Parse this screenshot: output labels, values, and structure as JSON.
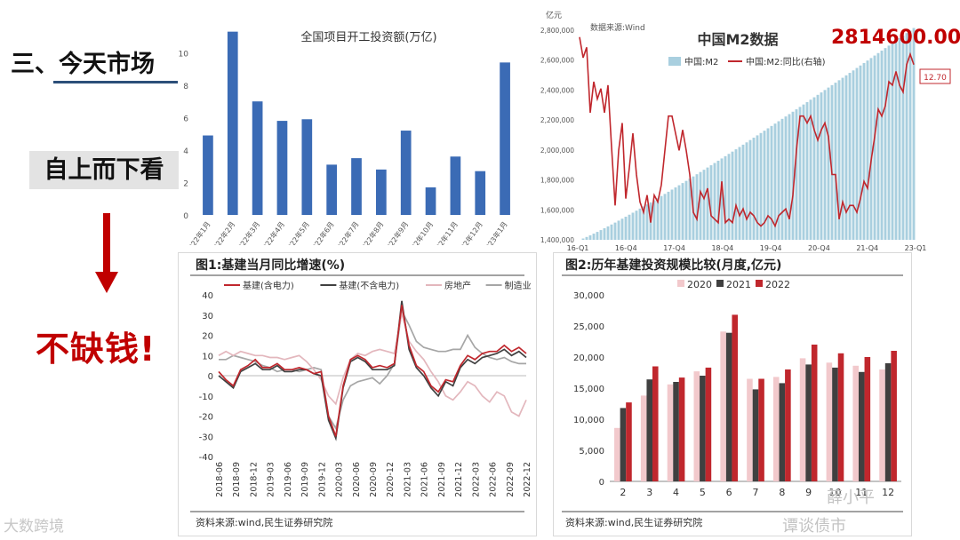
{
  "slide": {
    "heading": "三、今天市场",
    "subheading": "自上而下看",
    "conclusion": "不缺钱!",
    "arrow_color": "#c00000",
    "accent_color": "#c00000"
  },
  "watermarks": {
    "left": "大数跨境",
    "right_1": "薛小平",
    "right_2": "谭谈债市"
  },
  "chart_data": [
    {
      "id": "project-investment",
      "type": "bar",
      "title": "全国项目开工投资额(万亿)",
      "categories": [
        "2022年1月",
        "2022年2月",
        "2022年3月",
        "2022年4月",
        "2022年5月",
        "2022年6月",
        "2022年7月",
        "2022年8月",
        "2022年9月",
        "2022年10月",
        "2022年11月",
        "2022年12月",
        "2023年1月"
      ],
      "values": [
        4.9,
        11.3,
        7.0,
        5.8,
        5.9,
        3.1,
        3.5,
        2.8,
        5.2,
        1.7,
        3.6,
        2.7,
        9.4
      ],
      "yticks": [
        "0",
        "2",
        "4",
        "6",
        "8",
        "10"
      ],
      "ylim": [
        0,
        11.5
      ],
      "color": "#3b6bb5",
      "grid": false
    },
    {
      "id": "china-m2",
      "type": "bar+line",
      "title": "中国M2数据",
      "unit_label": "亿元",
      "source_note": "数据来源:Wind",
      "headline_value": "2814600.00亿",
      "series": [
        {
          "name": "中国:M2",
          "kind": "bar",
          "color": "#a9cfdf",
          "start": 1400000,
          "end": 2814600
        },
        {
          "name": "中国:M2:同比(右轴)",
          "kind": "line",
          "color": "#c0272d"
        }
      ],
      "line_values": [
        13.4,
        12.8,
        13.1,
        11.2,
        12.1,
        11.6,
        11.9,
        11.2,
        12.0,
        10.2,
        8.5,
        10.1,
        10.9,
        8.7,
        9.6,
        10.6,
        9.4,
        8.6,
        8.3,
        8.8,
        8.0,
        8.8,
        8.6,
        9.1,
        10.1,
        11.1,
        11.1,
        10.6,
        10.1,
        10.7,
        10.1,
        9.4,
        8.3,
        8.1,
        8.9,
        8.7,
        9.0,
        8.2,
        8.1,
        8.0,
        9.2,
        8.0,
        8.1,
        8.0,
        8.5,
        8.2,
        8.4,
        8.1,
        8.3,
        8.2,
        8.0,
        7.9,
        8.0,
        8.2,
        8.1,
        7.9,
        8.2,
        8.3,
        8.4,
        8.1,
        8.8,
        10.1,
        11.1,
        11.1,
        10.9,
        11.1,
        10.7,
        10.4,
        10.7,
        10.9,
        10.5,
        9.4,
        9.4,
        8.1,
        8.6,
        8.3,
        8.5,
        8.5,
        8.3,
        8.7,
        9.2,
        9.0,
        9.8,
        10.5,
        11.3,
        11.1,
        11.4,
        12.1,
        12.0,
        12.4,
        12.0,
        11.8,
        12.6,
        12.9,
        12.6
      ],
      "right_axis_label": "12.70",
      "yticks": [
        "1,400,000",
        "1,600,000",
        "1,800,000",
        "2,000,000",
        "2,200,000",
        "2,400,000",
        "2,600,000",
        "2,800,000"
      ],
      "ylim": [
        1400000,
        2800000
      ],
      "xticks": [
        "16-Q1",
        "16-Q4",
        "17-Q4",
        "18-Q4",
        "19-Q4",
        "20-Q4",
        "21-Q4",
        "23-Q1"
      ],
      "legend_position": "top-center"
    },
    {
      "id": "infra-growth",
      "type": "line",
      "title": "图1:基建当月同比增速(%)",
      "source_note": "资料来源:wind,民生证券研究院",
      "xticks": [
        "2018-06",
        "2018-09",
        "2018-12",
        "2019-03",
        "2019-06",
        "2019-09",
        "2019-12",
        "2020-03",
        "2020-06",
        "2020-09",
        "2020-12",
        "2021-03",
        "2021-06",
        "2021-09",
        "2021-12",
        "2022-03",
        "2022-06",
        "2022-09",
        "2022-12"
      ],
      "yticks": [
        "40",
        "30",
        "20",
        "10",
        "0",
        "-10",
        "-20",
        "-30",
        "-40"
      ],
      "ylim": [
        -40,
        40
      ],
      "series": [
        {
          "name": "基建(含电力)",
          "color": "#c0272d",
          "values": [
            2,
            -2,
            -5,
            3,
            5,
            8,
            4,
            4,
            6,
            3,
            3,
            4,
            3,
            1,
            2,
            -20,
            -30,
            -5,
            8,
            10,
            8,
            4,
            5,
            4,
            6,
            35,
            15,
            5,
            2,
            -5,
            -8,
            -2,
            -3,
            5,
            10,
            8,
            11,
            12,
            12,
            15,
            12,
            14,
            11
          ]
        },
        {
          "name": "基建(不含电力)",
          "color": "#404040",
          "values": [
            0,
            -3,
            -6,
            2,
            4,
            6,
            3,
            3,
            5,
            2,
            2,
            3,
            3,
            1,
            0,
            -22,
            -31,
            -6,
            7,
            9,
            7,
            3,
            3,
            3,
            5,
            37,
            13,
            4,
            0,
            -6,
            -10,
            -3,
            -5,
            4,
            8,
            6,
            9,
            10,
            11,
            13,
            10,
            12,
            9
          ]
        },
        {
          "name": "房地产",
          "color": "#e3b7bd",
          "values": [
            10,
            12,
            10,
            12,
            11,
            10,
            10,
            9,
            9,
            8,
            9,
            10,
            7,
            3,
            -2,
            -10,
            -14,
            -1,
            8,
            11,
            10,
            12,
            13,
            12,
            11,
            31,
            17,
            12,
            8,
            2,
            -3,
            -10,
            -12,
            -8,
            -3,
            -5,
            -10,
            -13,
            -8,
            -10,
            -18,
            -20,
            -12
          ]
        },
        {
          "name": "制造业",
          "color": "#a6a6a6",
          "values": [
            8,
            8,
            10,
            9,
            8,
            7,
            5,
            4,
            2,
            3,
            3,
            2,
            3,
            4,
            3,
            -20,
            -26,
            -12,
            -5,
            -3,
            -2,
            -1,
            -4,
            0,
            6,
            32,
            25,
            17,
            14,
            13,
            12,
            12,
            13,
            13,
            20,
            14,
            11,
            9,
            8,
            9,
            7,
            6,
            6
          ]
        }
      ],
      "legend_position": "top-left"
    },
    {
      "id": "infra-scale",
      "type": "bar",
      "title": "图2:历年基建投资规模比较(月度,亿元)",
      "source_note": "资料来源:wind,民生证券研究院",
      "categories": [
        "2",
        "3",
        "4",
        "5",
        "6",
        "7",
        "8",
        "9",
        "10",
        "11",
        "12"
      ],
      "series": [
        {
          "name": "2020",
          "color": "#f2c9cc",
          "values": [
            8600,
            13800,
            15600,
            17700,
            24100,
            16500,
            16800,
            19800,
            19100,
            18600,
            18000
          ]
        },
        {
          "name": "2021",
          "color": "#404040",
          "values": [
            11800,
            16400,
            16000,
            17000,
            23900,
            14800,
            15800,
            18800,
            18300,
            17600,
            19000
          ]
        },
        {
          "name": "2022",
          "color": "#c0272d",
          "values": [
            12700,
            18500,
            16700,
            18300,
            26800,
            16500,
            18000,
            22000,
            20600,
            20000,
            21000
          ]
        }
      ],
      "yticks": [
        "0",
        "5,000",
        "10,000",
        "15,000",
        "20,000",
        "25,000",
        "30,000"
      ],
      "ylim": [
        0,
        30000
      ],
      "legend_position": "top-center"
    }
  ]
}
